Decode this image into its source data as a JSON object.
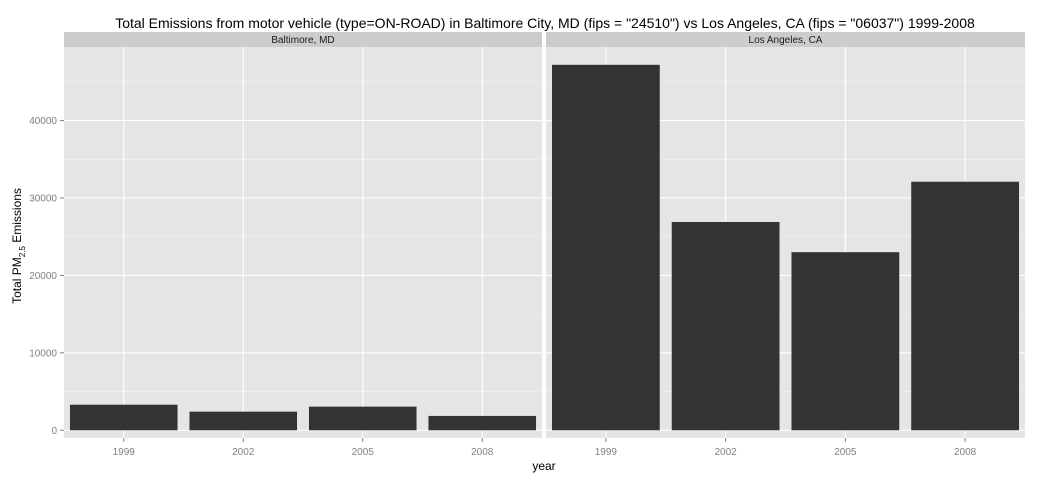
{
  "chart_data": {
    "type": "bar",
    "title": "Total Emissions from motor vehicle (type=ON-ROAD) in Baltimore City, MD (fips = \"24510\") vs Los Angeles, CA (fips = \"06037\")  1999-2008",
    "xlabel": "year",
    "ylabel": {
      "prefix": "Total PM",
      "subscript": "2.5",
      "suffix": " Emissions"
    },
    "categories": [
      "1999",
      "2002",
      "2005",
      "2008"
    ],
    "ylim": [
      -1000,
      49500
    ],
    "yticks": [
      0,
      10000,
      20000,
      30000,
      40000
    ],
    "ytick_labels": [
      "0",
      "10000",
      "20000",
      "30000",
      "40000"
    ],
    "grid": true,
    "legend": "none",
    "facets": [
      {
        "name": "Baltimore, MD",
        "values": [
          3300,
          2400,
          3050,
          1850
        ]
      },
      {
        "name": "Los Angeles, CA",
        "values": [
          47200,
          26900,
          23000,
          32100
        ]
      }
    ]
  },
  "colors": {
    "bar": "#333333",
    "panel_background": "#e5e5e5",
    "strip_background": "#cccccc",
    "grid": "#ffffff",
    "tick_text": "#7f7f7f"
  }
}
